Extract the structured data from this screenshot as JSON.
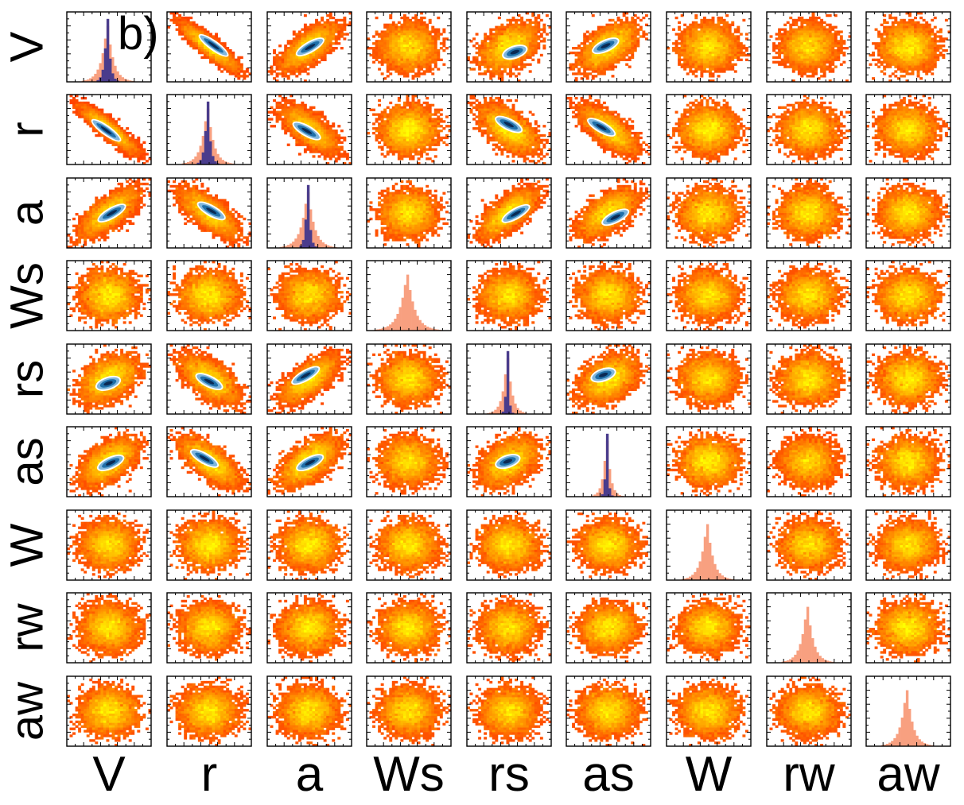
{
  "panel_label": "b)",
  "chart_data": {
    "type": "corner-plot",
    "parameters": [
      "V",
      "r",
      "a",
      "Ws",
      "rs",
      "as",
      "W",
      "rw",
      "aw"
    ],
    "diagonal": [
      {
        "param": "V",
        "wide_width": 0.12,
        "narrow_width": 0.05
      },
      {
        "param": "r",
        "wide_width": 0.12,
        "narrow_width": 0.05
      },
      {
        "param": "a",
        "wide_width": 0.13,
        "narrow_width": 0.04
      },
      {
        "param": "Ws",
        "wide_width": 0.15,
        "narrow_width": null
      },
      {
        "param": "rs",
        "wide_width": 0.09,
        "narrow_width": 0.025
      },
      {
        "param": "as",
        "wide_width": 0.07,
        "narrow_width": 0.025
      },
      {
        "param": "W",
        "wide_width": 0.12,
        "narrow_width": null
      },
      {
        "param": "rw",
        "wide_width": 0.12,
        "narrow_width": null
      },
      {
        "param": "aw",
        "wide_width": 0.12,
        "narrow_width": null
      }
    ],
    "wide_histogram_color": "#f8a080",
    "narrow_histogram_color": "#4a3c8c",
    "density_colors": [
      "#ff2200",
      "#ff7700",
      "#ffbb00",
      "#ffff00"
    ],
    "constrained_density_colors": [
      "#ffffff",
      "#7fb6dc",
      "#1f6fa8",
      "#0b2a54"
    ],
    "constrained_parameters": [
      "V",
      "r",
      "a",
      "rs",
      "as"
    ],
    "correlations": {
      "V-r": -0.9,
      "V-a": 0.7,
      "V-rs": 0.4,
      "V-as": 0.55,
      "r-a": -0.7,
      "r-rs": -0.6,
      "r-as": -0.7,
      "a-rs": 0.7,
      "a-as": 0.6,
      "rs-as": 0.4
    },
    "legend": "none",
    "grid": false
  }
}
